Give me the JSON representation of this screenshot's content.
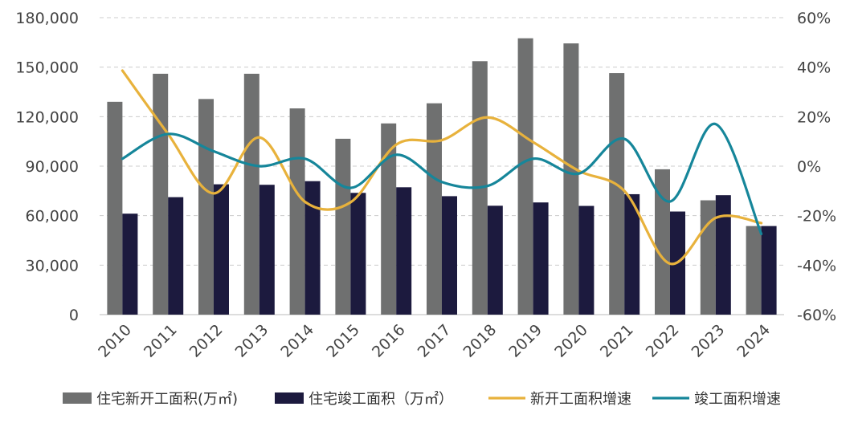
{
  "chart_data": {
    "type": "bar",
    "categories": [
      "2010",
      "2011",
      "2012",
      "2013",
      "2014",
      "2015",
      "2016",
      "2017",
      "2018",
      "2019",
      "2020",
      "2021",
      "2022",
      "2023",
      "2024"
    ],
    "series": [
      {
        "name": "住宅新开工面积(万㎡)",
        "kind": "bar",
        "axis": "left",
        "color": "#6f7070",
        "values": [
          129000,
          146000,
          130700,
          146000,
          125000,
          106600,
          115900,
          128100,
          153600,
          167500,
          164400,
          146400,
          88100,
          69300,
          53700
        ]
      },
      {
        "name": "住宅竣工面积（万㎡）",
        "kind": "bar",
        "axis": "left",
        "color": "#1c1a3e",
        "values": [
          61200,
          71200,
          79000,
          78700,
          80900,
          73800,
          77200,
          71800,
          66000,
          68000,
          65900,
          73000,
          62500,
          72400,
          53700
        ]
      },
      {
        "name": "新开工面积增速",
        "kind": "line",
        "axis": "right",
        "color": "#e8b23c",
        "values": [
          38.6,
          13.0,
          -11.0,
          11.6,
          -14.4,
          -14.6,
          8.7,
          10.5,
          19.7,
          9.7,
          -1.9,
          -10.0,
          -39.4,
          -20.9,
          -23.0
        ]
      },
      {
        "name": "竣工面积增速",
        "kind": "line",
        "axis": "right",
        "color": "#16869a",
        "values": [
          3.0,
          13.0,
          6.0,
          0.0,
          3.0,
          -8.8,
          4.6,
          -6.4,
          -8.0,
          3.0,
          -3.0,
          11.0,
          -14.3,
          17.0,
          -27.4
        ]
      }
    ],
    "y_left": {
      "min": 0,
      "max": 180000,
      "ticks": [
        "0",
        "30,000",
        "60,000",
        "90,000",
        "120,000",
        "150,000",
        "180,000"
      ]
    },
    "y_right": {
      "min": -60,
      "max": 60,
      "ticks": [
        "-60%",
        "-40%",
        "-20%",
        "0%",
        "20%",
        "40%",
        "60%"
      ]
    },
    "grid": true,
    "legend_position": "bottom"
  }
}
